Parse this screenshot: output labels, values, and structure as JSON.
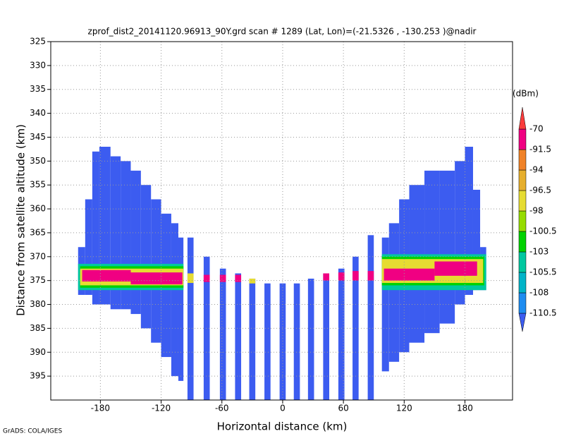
{
  "chart_data": {
    "type": "heatmap",
    "title": "zprof_dist2_20141120.96913_90Y.grd  scan # 1289  (Lat, Lon)=(-21.5326 , -130.253 )@nadir",
    "xlabel": "Horizontal distance (km)",
    "ylabel": "Distance from satellite altitude (km)",
    "xlim": [
      -229,
      227
    ],
    "ylim": [
      325,
      400
    ],
    "y_inverted": true,
    "xticks": [
      -180,
      -120,
      -60,
      0,
      60,
      120,
      180
    ],
    "yticks": [
      325,
      330,
      335,
      340,
      345,
      350,
      355,
      360,
      365,
      370,
      375,
      380,
      385,
      390,
      395
    ],
    "grid": true,
    "colorbar_unit": "(dBm)",
    "color_levels": [
      -110.5,
      -108,
      -105.5,
      -103,
      -100.5,
      -98,
      -96.5,
      -94,
      -91.5,
      -70
    ],
    "colors": [
      "#3c5cf0",
      "#1e8cf0",
      "#00b4c8",
      "#00c8a0",
      "#00d200",
      "#96dc00",
      "#e6dc32",
      "#e6af2d",
      "#f08228",
      "#f00082",
      "#fa3c3c"
    ],
    "credit": "GrADS: COLA/IGES",
    "cells": [
      {
        "x": [
          -202,
          -195
        ],
        "y": [
          368,
          378
        ],
        "value": -115
      },
      {
        "x": [
          -195,
          -188
        ],
        "y": [
          358,
          378
        ],
        "value": -115
      },
      {
        "x": [
          -188,
          -181
        ],
        "y": [
          348,
          380
        ],
        "value": -115
      },
      {
        "x": [
          -181,
          -170
        ],
        "y": [
          347,
          380
        ],
        "value": -115
      },
      {
        "x": [
          -170,
          -160
        ],
        "y": [
          349,
          381
        ],
        "value": -115
      },
      {
        "x": [
          -160,
          -150
        ],
        "y": [
          350,
          381
        ],
        "value": -115
      },
      {
        "x": [
          -150,
          -140
        ],
        "y": [
          352,
          382
        ],
        "value": -115
      },
      {
        "x": [
          -140,
          -130
        ],
        "y": [
          355,
          385
        ],
        "value": -115
      },
      {
        "x": [
          -130,
          -120
        ],
        "y": [
          358,
          388
        ],
        "value": -115
      },
      {
        "x": [
          -120,
          -110
        ],
        "y": [
          361,
          391
        ],
        "value": -115
      },
      {
        "x": [
          -110,
          -103
        ],
        "y": [
          363,
          395
        ],
        "value": -115
      },
      {
        "x": [
          -103,
          -98
        ],
        "y": [
          366,
          396
        ],
        "value": -115
      },
      {
        "x": [
          98,
          105
        ],
        "y": [
          366,
          394
        ],
        "value": -115
      },
      {
        "x": [
          105,
          115
        ],
        "y": [
          363,
          392
        ],
        "value": -115
      },
      {
        "x": [
          115,
          125
        ],
        "y": [
          358,
          390
        ],
        "value": -115
      },
      {
        "x": [
          125,
          140
        ],
        "y": [
          355,
          388
        ],
        "value": -115
      },
      {
        "x": [
          140,
          155
        ],
        "y": [
          352,
          386
        ],
        "value": -115
      },
      {
        "x": [
          155,
          170
        ],
        "y": [
          352,
          384
        ],
        "value": -115
      },
      {
        "x": [
          170,
          180
        ],
        "y": [
          350,
          380
        ],
        "value": -115
      },
      {
        "x": [
          180,
          188
        ],
        "y": [
          347,
          378
        ],
        "value": -115
      },
      {
        "x": [
          188,
          195
        ],
        "y": [
          356,
          377
        ],
        "value": -115
      },
      {
        "x": [
          195,
          201
        ],
        "y": [
          368,
          377
        ],
        "value": -115
      },
      {
        "x": [
          -94,
          -88
        ],
        "y": [
          366,
          400
        ],
        "value": -115
      },
      {
        "x": [
          -78,
          -72
        ],
        "y": [
          370,
          400
        ],
        "value": -115
      },
      {
        "x": [
          -62,
          -56
        ],
        "y": [
          372.5,
          400
        ],
        "value": -115
      },
      {
        "x": [
          -47,
          -41
        ],
        "y": [
          373.5,
          400
        ],
        "value": -115
      },
      {
        "x": [
          -33,
          -27
        ],
        "y": [
          374.6,
          400
        ],
        "value": -115
      },
      {
        "x": [
          -18,
          -12
        ],
        "y": [
          375.6,
          400
        ],
        "value": -115
      },
      {
        "x": [
          -3,
          3
        ],
        "y": [
          375.6,
          400
        ],
        "value": -115
      },
      {
        "x": [
          11,
          17
        ],
        "y": [
          375.6,
          400
        ],
        "value": -115
      },
      {
        "x": [
          25,
          31
        ],
        "y": [
          374.6,
          400
        ],
        "value": -115
      },
      {
        "x": [
          40,
          46
        ],
        "y": [
          373.5,
          400
        ],
        "value": -115
      },
      {
        "x": [
          55,
          61
        ],
        "y": [
          372.5,
          400
        ],
        "value": -115
      },
      {
        "x": [
          69,
          75
        ],
        "y": [
          370,
          400
        ],
        "value": -115
      },
      {
        "x": [
          84,
          90
        ],
        "y": [
          365.5,
          400
        ],
        "value": -115
      },
      {
        "x": [
          -202,
          -98
        ],
        "y": [
          371.5,
          377
        ],
        "value": -104
      },
      {
        "x": [
          -200,
          -98
        ],
        "y": [
          372,
          376.5
        ],
        "value": -101
      },
      {
        "x": [
          -200,
          -98
        ],
        "y": [
          372.5,
          376
        ],
        "value": -97
      },
      {
        "x": [
          -198,
          -150
        ],
        "y": [
          372.8,
          375.2
        ],
        "value": -80
      },
      {
        "x": [
          -150,
          -99
        ],
        "y": [
          373.3,
          375.8
        ],
        "value": -80
      },
      {
        "x": [
          98,
          201
        ],
        "y": [
          369.5,
          377
        ],
        "value": -104
      },
      {
        "x": [
          98,
          199
        ],
        "y": [
          370,
          376
        ],
        "value": -101
      },
      {
        "x": [
          98,
          198
        ],
        "y": [
          370.5,
          375.5
        ],
        "value": -97
      },
      {
        "x": [
          100,
          150
        ],
        "y": [
          372.5,
          375
        ],
        "value": -80
      },
      {
        "x": [
          150,
          192
        ],
        "y": [
          371,
          374
        ],
        "value": -80
      },
      {
        "x": [
          -94,
          -88
        ],
        "y": [
          373.5,
          375.5
        ],
        "value": -97
      },
      {
        "x": [
          -78,
          -72
        ],
        "y": [
          373.8,
          375.3
        ],
        "value": -80
      },
      {
        "x": [
          -62,
          -56
        ],
        "y": [
          373.8,
          375.3
        ],
        "value": -80
      },
      {
        "x": [
          -47,
          -41
        ],
        "y": [
          373.8,
          375.3
        ],
        "value": -80
      },
      {
        "x": [
          -33,
          -27
        ],
        "y": [
          374.6,
          375.6
        ],
        "value": -97
      },
      {
        "x": [
          40,
          46
        ],
        "y": [
          373.5,
          375
        ],
        "value": -80
      },
      {
        "x": [
          55,
          61
        ],
        "y": [
          373.3,
          375
        ],
        "value": -80
      },
      {
        "x": [
          69,
          75
        ],
        "y": [
          373,
          375
        ],
        "value": -80
      },
      {
        "x": [
          84,
          90
        ],
        "y": [
          373,
          375
        ],
        "value": -80
      }
    ]
  }
}
